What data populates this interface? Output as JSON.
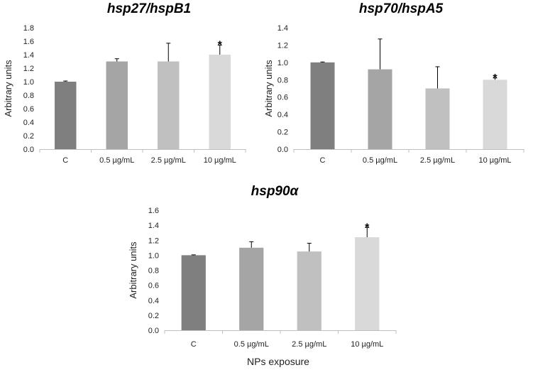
{
  "figure": {
    "shared_xlabel": "NPs exposure"
  },
  "chart_data": [
    {
      "type": "bar",
      "title": "hsp27/hspB1",
      "ylabel": "Arbitrary units",
      "xlabel": "",
      "categories": [
        "C",
        "0.5 µg/mL",
        "2.5 µg/mL",
        "10 µg/mL"
      ],
      "values": [
        1.0,
        1.3,
        1.3,
        1.4
      ],
      "errors": [
        0.01,
        0.04,
        0.27,
        0.14
      ],
      "significance": [
        "",
        "",
        "",
        "*"
      ],
      "ylim": [
        0,
        1.8
      ],
      "ytick_step": 0.2,
      "ytick_labels": [
        "0.0",
        "0.2",
        "0.4",
        "0.6",
        "0.8",
        "1.0",
        "1.2",
        "1.4",
        "1.6",
        "1.8"
      ],
      "bar_colors": [
        "#7f7f7f",
        "#a5a5a5",
        "#c0c0c0",
        "#d9d9d9"
      ]
    },
    {
      "type": "bar",
      "title": "hsp70/hspA5",
      "ylabel": "Arbitrary units",
      "xlabel": "",
      "categories": [
        "C",
        "0.5 µg/mL",
        "2.5 µg/mL",
        "10 µg/mL"
      ],
      "values": [
        1.0,
        0.92,
        0.7,
        0.8
      ],
      "errors": [
        0.005,
        0.35,
        0.25,
        0.02
      ],
      "significance": [
        "",
        "",
        "",
        "*"
      ],
      "ylim": [
        0,
        1.4
      ],
      "ytick_step": 0.2,
      "ytick_labels": [
        "0.0",
        "0.2",
        "0.4",
        "0.6",
        "0.8",
        "1.0",
        "1.2",
        "1.4"
      ],
      "bar_colors": [
        "#7f7f7f",
        "#a5a5a5",
        "#c0c0c0",
        "#d9d9d9"
      ]
    },
    {
      "type": "bar",
      "title": "hsp90α",
      "ylabel": "Arbitrary units",
      "xlabel": "NPs exposure",
      "categories": [
        "C",
        "0.5 µg/mL",
        "2.5 µg/mL",
        "10 µg/mL"
      ],
      "values": [
        1.0,
        1.1,
        1.05,
        1.24
      ],
      "errors": [
        0.005,
        0.08,
        0.11,
        0.13
      ],
      "significance": [
        "",
        "",
        "",
        "*"
      ],
      "ylim": [
        0,
        1.6
      ],
      "ytick_step": 0.2,
      "ytick_labels": [
        "0.0",
        "0.2",
        "0.4",
        "0.6",
        "0.8",
        "1.0",
        "1.2",
        "1.4",
        "1.6"
      ],
      "bar_colors": [
        "#7f7f7f",
        "#a5a5a5",
        "#c0c0c0",
        "#d9d9d9"
      ]
    }
  ]
}
